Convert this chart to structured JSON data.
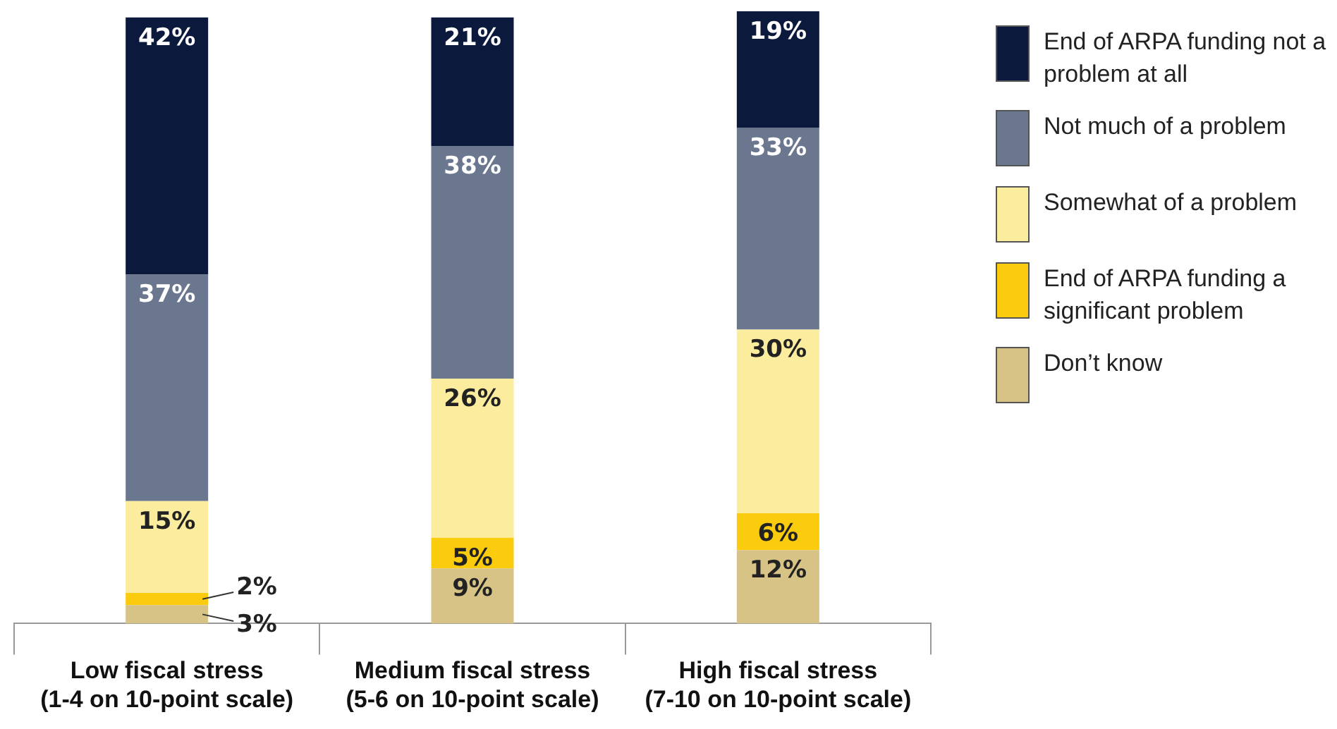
{
  "chart_data": {
    "type": "bar",
    "stacked": true,
    "categories": [
      "Low fiscal stress\n(1-4 on 10-point scale)",
      "Medium fiscal stress\n(5-6 on 10-point scale)",
      "High fiscal stress\n(7-10 on 10-point scale)"
    ],
    "series": [
      {
        "name": "Don’t know",
        "color": "#d8c387",
        "values": [
          3,
          9,
          12
        ],
        "value_labels": [
          "3%",
          "9%",
          "12%"
        ]
      },
      {
        "name": "End of ARPA funding a significant problem",
        "color": "#fbcb0d",
        "values": [
          2,
          5,
          6
        ],
        "value_labels": [
          "2%",
          "5%",
          "6%"
        ]
      },
      {
        "name": "Somewhat of a problem",
        "color": "#fcec9d",
        "values": [
          15,
          26,
          30
        ],
        "value_labels": [
          "15%",
          "26%",
          "30%"
        ]
      },
      {
        "name": "Not much of a problem",
        "color": "#6b778f",
        "values": [
          37,
          38,
          33
        ],
        "value_labels": [
          "37%",
          "38%",
          "33%"
        ]
      },
      {
        "name": "End of ARPA funding not a problem at all",
        "color": "#0b1a3c",
        "values": [
          42,
          21,
          19
        ],
        "value_labels": [
          "42%",
          "21%",
          "19%"
        ]
      }
    ],
    "tick_labels": "x",
    "legend": "right",
    "grid": false
  }
}
